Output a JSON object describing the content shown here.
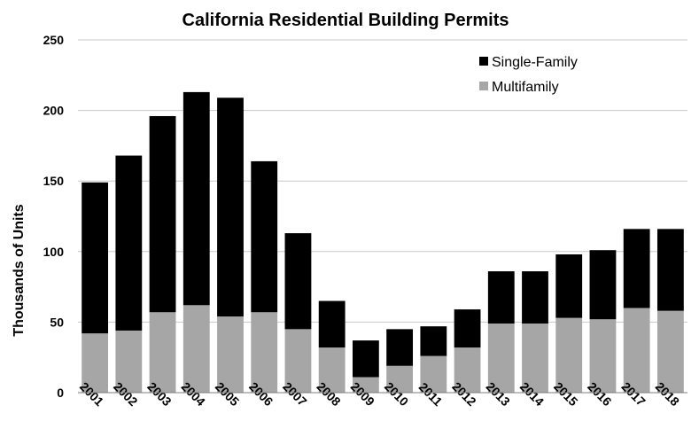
{
  "chart_data": {
    "type": "bar",
    "stacked": true,
    "title": "California Residential Building Permits",
    "xlabel": "",
    "ylabel": "Thousands of Units",
    "ylim": [
      0,
      250
    ],
    "yticks": [
      0,
      50,
      100,
      150,
      200,
      250
    ],
    "grid": true,
    "legend_position": "top-right",
    "categories": [
      "2001",
      "2002",
      "2003",
      "2004",
      "2005",
      "2006",
      "2007",
      "2008",
      "2009",
      "2010",
      "2011",
      "2012",
      "2013",
      "2014",
      "2015",
      "2016",
      "2017",
      "2018"
    ],
    "series": [
      {
        "name": "Multifamily",
        "color": "#a6a6a6",
        "values": [
          42,
          44,
          57,
          62,
          54,
          57,
          45,
          32,
          11,
          19,
          26,
          32,
          49,
          49,
          53,
          52,
          60,
          58
        ]
      },
      {
        "name": "Single-Family",
        "color": "#000000",
        "values": [
          107,
          124,
          139,
          151,
          155,
          107,
          68,
          33,
          26,
          26,
          21,
          27,
          37,
          37,
          45,
          49,
          56,
          58
        ]
      }
    ],
    "legend_order": [
      "Single-Family",
      "Multifamily"
    ]
  }
}
